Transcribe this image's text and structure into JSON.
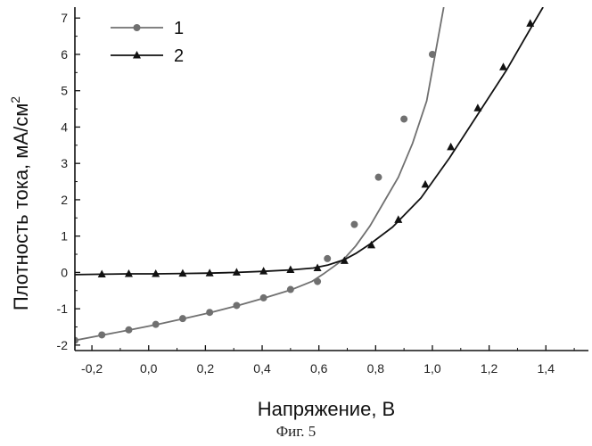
{
  "chart_data": {
    "type": "line",
    "xlabel": "Напряжение, В",
    "ylabel_main": "Плотность тока, мА/см",
    "ylabel_sup": "2",
    "xlim": [
      -0.26,
      1.55
    ],
    "ylim": [
      -2.15,
      7.3
    ],
    "x_ticks": [
      -0.2,
      0.0,
      0.2,
      0.4,
      0.6,
      0.8,
      1.0,
      1.2,
      1.4
    ],
    "x_tick_labels": [
      "-0,2",
      "0,0",
      "0,2",
      "0,4",
      "0,6",
      "0,8",
      "1,0",
      "1,2",
      "1,4"
    ],
    "y_ticks": [
      -2,
      -1,
      0,
      1,
      2,
      3,
      4,
      5,
      6,
      7
    ],
    "y_tick_labels": [
      "-2",
      "-1",
      "0",
      "1",
      "2",
      "3",
      "4",
      "5",
      "6",
      "7"
    ],
    "legend_position": "top-left",
    "series": [
      {
        "name": "1",
        "marker": "circle",
        "color": "#707070",
        "x": [
          -0.26,
          -0.16,
          -0.065,
          0.03,
          0.125,
          0.22,
          0.315,
          0.41,
          0.505,
          0.575,
          0.62,
          0.65,
          0.69,
          0.73,
          0.78,
          0.83,
          0.88,
          0.93,
          0.98,
          1.04
        ],
        "y": [
          -1.87,
          -1.72,
          -1.58,
          -1.43,
          -1.27,
          -1.1,
          -0.91,
          -0.7,
          -0.47,
          -0.25,
          -0.02,
          0.15,
          0.38,
          0.73,
          1.28,
          1.95,
          2.62,
          3.55,
          4.72,
          7.3
        ],
        "marker_x": [
          -0.26,
          -0.165,
          -0.07,
          0.025,
          0.12,
          0.215,
          0.31,
          0.405,
          0.5,
          0.595,
          0.63,
          0.725,
          0.81,
          0.9,
          1.0
        ],
        "marker_y": [
          -1.87,
          -1.72,
          -1.58,
          -1.43,
          -1.27,
          -1.1,
          -0.91,
          -0.7,
          -0.47,
          -0.25,
          0.38,
          1.32,
          2.62,
          4.22,
          6.0
        ]
      },
      {
        "name": "2",
        "marker": "triangle",
        "color": "#111111",
        "x": [
          -0.26,
          -0.16,
          -0.07,
          0.025,
          0.12,
          0.215,
          0.31,
          0.405,
          0.5,
          0.58,
          0.63,
          0.69,
          0.73,
          0.78,
          0.86,
          0.96,
          1.06,
          1.16,
          1.26,
          1.36,
          1.39
        ],
        "y": [
          -0.06,
          -0.05,
          -0.04,
          -0.04,
          -0.03,
          -0.02,
          0.0,
          0.03,
          0.07,
          0.12,
          0.2,
          0.35,
          0.52,
          0.78,
          1.25,
          2.05,
          3.15,
          4.35,
          5.55,
          6.9,
          7.3
        ],
        "marker_x": [
          -0.165,
          -0.07,
          0.025,
          0.12,
          0.215,
          0.31,
          0.405,
          0.5,
          0.595,
          0.69,
          0.785,
          0.88,
          0.975,
          1.065,
          1.16,
          1.25,
          1.345
        ],
        "marker_y": [
          -0.05,
          -0.04,
          -0.04,
          -0.03,
          -0.02,
          0.0,
          0.03,
          0.07,
          0.12,
          0.32,
          0.75,
          1.45,
          2.42,
          3.45,
          4.52,
          5.65,
          6.85
        ]
      }
    ]
  },
  "caption": "Фиг. 5"
}
